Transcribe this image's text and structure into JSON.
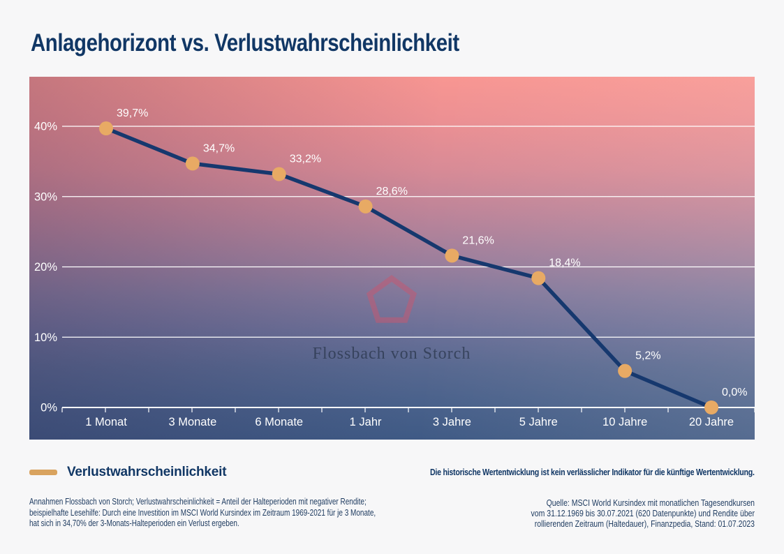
{
  "title": "Anlagehorizont vs. Verlustwahrscheinlichkeit",
  "watermark": {
    "text": "Flossbach von Storch",
    "logo": "pentagon-logo",
    "logo_color": "#c35a72"
  },
  "legend": {
    "label": "Verlustwahrscheinlichkeit",
    "swatch_color": "#d9a35f"
  },
  "risk_note": "Die historische Wertentwicklung ist kein verlässlicher Indikator für die künftige Wertentwicklung.",
  "footnotes": {
    "left_lines": [
      "Annahmen Flossbach von Storch; Verlustwahrscheinlichkeit = Anteil der Halteperioden mit negativer Rendite;",
      "beispielhafte Lesehilfe: Durch eine Investition im MSCI World Kursindex im Zeitraum 1969-2021 für je 3 Monate,",
      "hat sich in 34,70% der 3-Monats-Halteperioden ein Verlust ergeben."
    ],
    "right_lines": [
      "Quelle: MSCI World Kursindex mit monatlichen Tagesendkursen",
      "vom 31.12.1969 bis 30.07.2021 (620 Datenpunkte) und Rendite über",
      "rollierenden Zeitraum (Haltedauer), Finanzpedia, Stand: 01.07.2023"
    ]
  },
  "colors": {
    "title_navy": "#113765",
    "line_navy": "#16386e",
    "marker_tan": "#e8aa64",
    "grid_white": "#ffffff",
    "footnote_navy": "#1d3a5f",
    "page_bg": "#f7f7f8",
    "gradient_top": "#f89692",
    "gradient_bottom": "#3f5a85"
  },
  "chart_data": {
    "type": "line",
    "title": "Anlagehorizont vs. Verlustwahrscheinlichkeit",
    "categories": [
      "1 Monat",
      "3 Monate",
      "6 Monate",
      "1 Jahr",
      "3 Jahre",
      "5 Jahre",
      "10 Jahre",
      "20 Jahre"
    ],
    "series": [
      {
        "name": "Verlustwahrscheinlichkeit",
        "values": [
          39.7,
          34.7,
          33.2,
          28.6,
          21.6,
          18.4,
          5.2,
          0.0
        ],
        "point_labels": [
          "39,7%",
          "34,7%",
          "33,2%",
          "28,6%",
          "21,6%",
          "18,4%",
          "5,2%",
          "0,0%"
        ]
      }
    ],
    "xlabel": "",
    "ylabel": "",
    "yticks": {
      "values": [
        0,
        10,
        20,
        30,
        40
      ],
      "labels": [
        "0%",
        "10%",
        "20%",
        "30%",
        "40%"
      ]
    },
    "ylim": [
      0,
      47
    ],
    "grid": true,
    "legend_position": "bottom-left",
    "background": "pink-to-blue-gradient"
  }
}
